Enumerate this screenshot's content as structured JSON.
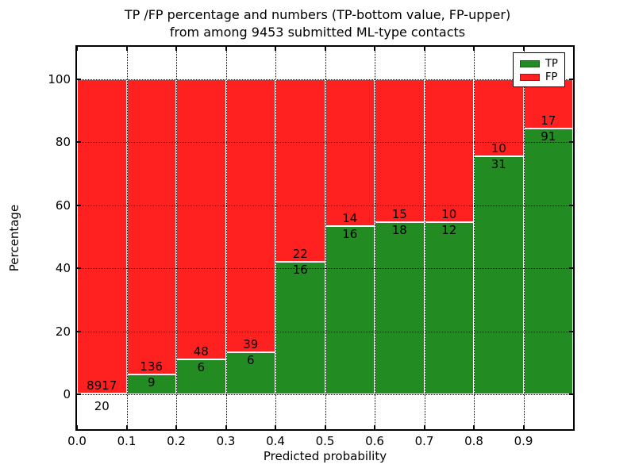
{
  "title": {
    "line1": "TP /FP percentage and numbers (TP-bottom value, FP-upper)",
    "line2": "from among 9453 submitted ML-type contacts"
  },
  "axes": {
    "xlabel": "Predicted probability",
    "ylabel": "Percentage",
    "x_tick_labels": [
      "0.0",
      "0.1",
      "0.2",
      "0.3",
      "0.4",
      "0.5",
      "0.6",
      "0.7",
      "0.8",
      "0.9"
    ],
    "y_tick_values": [
      0,
      20,
      40,
      60,
      80,
      100
    ]
  },
  "legend": {
    "items": [
      {
        "label": "TP",
        "color": "#228B22"
      },
      {
        "label": "FP",
        "color": "#FF2020"
      }
    ],
    "position": "upper right"
  },
  "colors": {
    "tp": "#228B22",
    "fp": "#FF2020",
    "grid": "#000000",
    "background": "#ffffff"
  },
  "chart_data": {
    "type": "bar",
    "stacked": true,
    "normalized_to_percent": true,
    "title": "TP /FP percentage and numbers (TP-bottom value, FP-upper)\nfrom among 9453 submitted ML-type contacts",
    "xlabel": "Predicted probability",
    "ylabel": "Percentage",
    "bin_edges": [
      0.0,
      0.1,
      0.2,
      0.3,
      0.4,
      0.5,
      0.6,
      0.7,
      0.8,
      0.9,
      1.0
    ],
    "categories": [
      "0.0-0.1",
      "0.1-0.2",
      "0.2-0.3",
      "0.3-0.4",
      "0.4-0.5",
      "0.5-0.6",
      "0.6-0.7",
      "0.7-0.8",
      "0.8-0.9",
      "0.9-1.0"
    ],
    "series": [
      {
        "name": "TP",
        "color": "#228B22",
        "counts": [
          20,
          9,
          6,
          6,
          16,
          16,
          18,
          12,
          31,
          91
        ]
      },
      {
        "name": "FP",
        "color": "#FF2020",
        "counts": [
          8917,
          136,
          48,
          39,
          22,
          14,
          15,
          10,
          10,
          17
        ]
      }
    ],
    "total_contacts": 9453,
    "bar_label_rule": "TP count printed at bottom (just below segment boundary), FP count printed just above it",
    "xlim": [
      0.0,
      1.0
    ],
    "ylim_percent": [
      -11,
      110
    ],
    "y_ticks": [
      0,
      20,
      40,
      60,
      80,
      100
    ],
    "grid": "dotted",
    "legend_position": "upper right"
  }
}
